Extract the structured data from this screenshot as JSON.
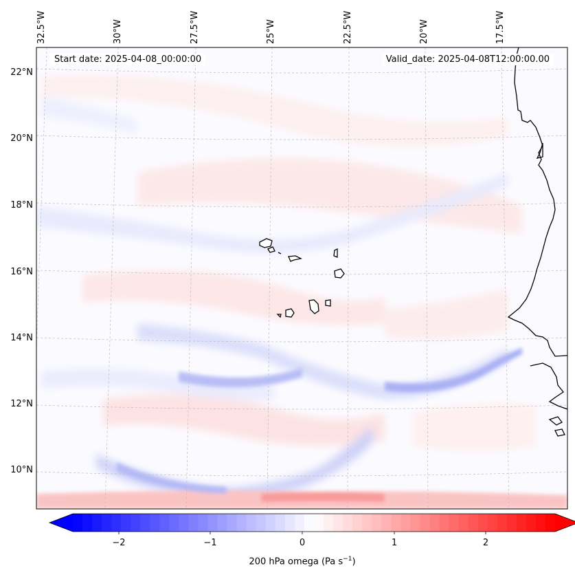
{
  "map": {
    "header_left": "Start date: 2025-04-08_00:00:00",
    "header_right": "Valid_date: 2025-04-08T12:00:00.00",
    "lon_labels": [
      "32.5°W",
      "30°W",
      "27.5°W",
      "25°W",
      "22.5°W",
      "20°W",
      "17.5°W"
    ],
    "lat_labels": [
      "22°N",
      "20°N",
      "18°N",
      "16°N",
      "14°N",
      "12°N",
      "10°N"
    ],
    "extent": {
      "lon_min": -32.6,
      "lon_max": -15.6,
      "lat_min": 8.8,
      "lat_max": 22.7
    },
    "variable": "200 hPa omega",
    "colormap": "bwr",
    "vmin": -2.5,
    "vmax": 2.5
  },
  "colorbar": {
    "ticks": [
      "−2",
      "−1",
      "0",
      "1",
      "2"
    ],
    "label_text": "200 hPa omega (Pa s",
    "label_exp": "−1",
    "label_close": ")",
    "colors": {
      "negative": "#0000ff",
      "zero": "#ffffff",
      "positive": "#ff0000"
    }
  },
  "chart_data": {
    "type": "heatmap",
    "title": "",
    "xlabel": "",
    "ylabel": "",
    "colorbar_label": "200 hPa omega (Pa s−1)",
    "colorbar_range": [
      -2.5,
      2.5
    ],
    "colorbar_ticks": [
      -2,
      -1,
      0,
      1,
      2
    ],
    "x_ticks": [
      -32.5,
      -30,
      -27.5,
      -25,
      -22.5,
      -20,
      -17.5
    ],
    "y_ticks": [
      10,
      12,
      14,
      16,
      18,
      20,
      22
    ]
  }
}
